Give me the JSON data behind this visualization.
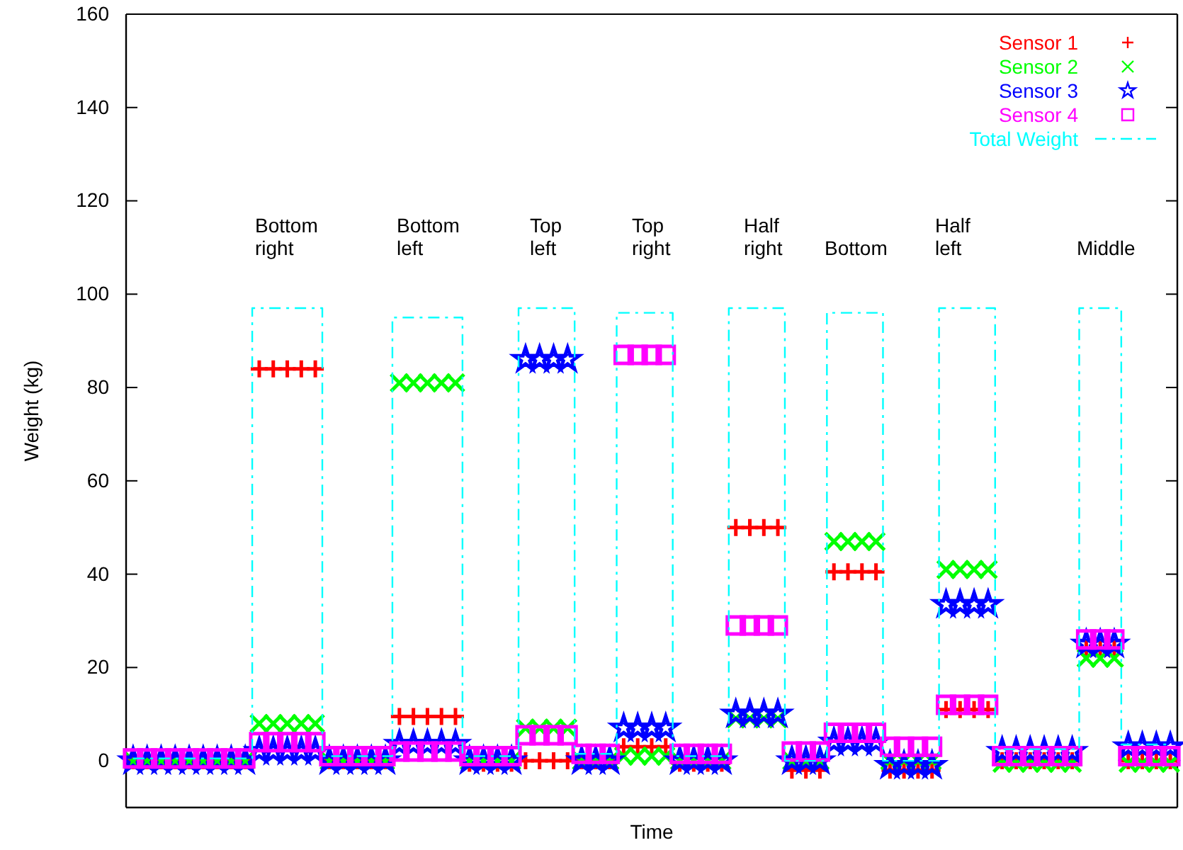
{
  "chart_data": {
    "type": "scatter",
    "xlabel": "Time",
    "ylabel": "Weight (kg)",
    "categories": [
      null,
      null,
      null,
      null,
      null,
      null,
      null,
      null,
      null,
      null,
      null,
      null,
      null,
      null,
      null,
      null,
      null,
      null,
      null,
      null,
      null,
      null,
      null,
      null,
      null,
      null,
      null,
      null,
      null,
      null,
      null,
      null,
      null,
      null,
      null,
      null,
      null,
      null,
      null,
      null,
      null,
      null,
      null,
      null,
      null,
      null,
      null,
      null,
      null,
      null,
      null,
      null,
      null,
      null,
      null,
      null,
      null,
      null,
      null,
      null,
      null,
      null,
      null,
      null,
      null,
      null,
      null,
      null,
      null,
      null,
      null,
      null,
      null,
      null,
      null
    ],
    "ylim": [
      -10,
      160
    ],
    "yticks": [
      0,
      20,
      40,
      60,
      80,
      100,
      120,
      140,
      160
    ],
    "tick_labels": "y",
    "grid": false,
    "legend": "top right",
    "series": [
      {
        "name": "Sensor 1",
        "color": "#ff0000",
        "marker": "cross",
        "values": [
          0,
          0,
          0,
          0,
          0,
          0,
          0,
          0,
          0,
          84,
          84,
          84,
          84,
          84,
          0,
          0,
          0,
          0,
          0,
          9.5,
          9.5,
          9.5,
          9.5,
          9.5,
          -0.5,
          -0.5,
          -0.5,
          -0.5,
          0,
          0,
          0,
          0,
          0,
          0,
          0,
          3,
          3,
          3,
          3,
          -0.5,
          -0.5,
          -0.5,
          -0.5,
          50,
          50,
          50,
          50,
          -2,
          -2,
          -2,
          40.5,
          40.5,
          40.5,
          40.5,
          -2,
          -2,
          -2,
          -2,
          11,
          11,
          11,
          11,
          0,
          0,
          0,
          0,
          0,
          0,
          24,
          24,
          24,
          0,
          0,
          0,
          0
        ]
      },
      {
        "name": "Sensor 2",
        "color": "#00ff00",
        "marker": "x",
        "values": [
          0,
          0,
          0,
          0,
          0,
          0,
          0,
          0,
          0,
          8,
          8,
          8,
          8,
          8,
          0,
          0,
          0,
          0,
          0,
          81,
          81,
          81,
          81,
          81,
          0,
          0,
          0,
          0,
          7,
          7,
          7,
          7,
          0,
          0,
          0,
          1,
          1,
          1,
          1,
          0,
          0,
          0,
          0,
          9,
          9,
          9,
          9,
          0,
          0,
          0,
          47,
          47,
          47,
          47,
          0,
          0,
          0,
          0,
          41,
          41,
          41,
          41,
          -0.5,
          -0.5,
          -0.5,
          -0.5,
          -0.5,
          -0.5,
          22,
          22,
          22,
          -0.5,
          -0.5,
          -0.5,
          -0.5
        ]
      },
      {
        "name": "Sensor 3",
        "color": "#0000ff",
        "marker": "star",
        "values": [
          0,
          0,
          0,
          0,
          0,
          0,
          0,
          0,
          0,
          2,
          2,
          2,
          2,
          2,
          0,
          0,
          0,
          0,
          0,
          3.5,
          3.5,
          3.5,
          3.5,
          3.5,
          0,
          0,
          0,
          0,
          86,
          86,
          86,
          86,
          0,
          0,
          0,
          7,
          7,
          7,
          7,
          0,
          0,
          0,
          0,
          10,
          10,
          10,
          10,
          0,
          0,
          0,
          4,
          4,
          4,
          4,
          -1,
          -1,
          -1,
          -1,
          33.5,
          33.5,
          33.5,
          33.5,
          2,
          2,
          2,
          2,
          2,
          2,
          25,
          25,
          25,
          3,
          3,
          3,
          3
        ]
      },
      {
        "name": "Sensor 4",
        "color": "#ff00ff",
        "marker": "square",
        "values": [
          0.5,
          0.5,
          0.5,
          0.5,
          0.5,
          0.5,
          0.5,
          0.5,
          0.5,
          4,
          4,
          4,
          4,
          4,
          1,
          1,
          1,
          1,
          1,
          2,
          2,
          2,
          2,
          2,
          1,
          1,
          1,
          1,
          5.5,
          5.5,
          5.5,
          5.5,
          1.5,
          1.5,
          1.5,
          87,
          87,
          87,
          87,
          1.5,
          1.5,
          1.5,
          1.5,
          29,
          29,
          29,
          29,
          2,
          2,
          2,
          6,
          6,
          6,
          6,
          3,
          3,
          3,
          3,
          12,
          12,
          12,
          12,
          1,
          1,
          1,
          1,
          1,
          1,
          26,
          26,
          26,
          1,
          1,
          1,
          1
        ]
      },
      {
        "name": "Total Weight",
        "type": "step",
        "color": "#00ffff",
        "marker": "none",
        "line_style": "dashed",
        "values": [
          0.5,
          0.5,
          0.5,
          0.5,
          0.5,
          0.5,
          0.5,
          0.5,
          0.5,
          97,
          97,
          97,
          97,
          97,
          1,
          1,
          1,
          1,
          1,
          95,
          95,
          95,
          95,
          95,
          1,
          1,
          1,
          1,
          97,
          97,
          97,
          97,
          1.5,
          1.5,
          1.5,
          96,
          96,
          96,
          96,
          1,
          1,
          1,
          1,
          97,
          97,
          97,
          97,
          0,
          0,
          0,
          96,
          96,
          96,
          96,
          0,
          0,
          0,
          0,
          97,
          97,
          97,
          97,
          2.5,
          2.5,
          2.5,
          2.5,
          2.5,
          2.5,
          97,
          97,
          97,
          3.5,
          3.5,
          3.5,
          3.5
        ]
      }
    ],
    "annotations": [
      "Bottom right",
      "Bottom left",
      "Top left",
      "Top right",
      "Half right",
      "Bottom",
      "Half left",
      "Middle"
    ]
  }
}
